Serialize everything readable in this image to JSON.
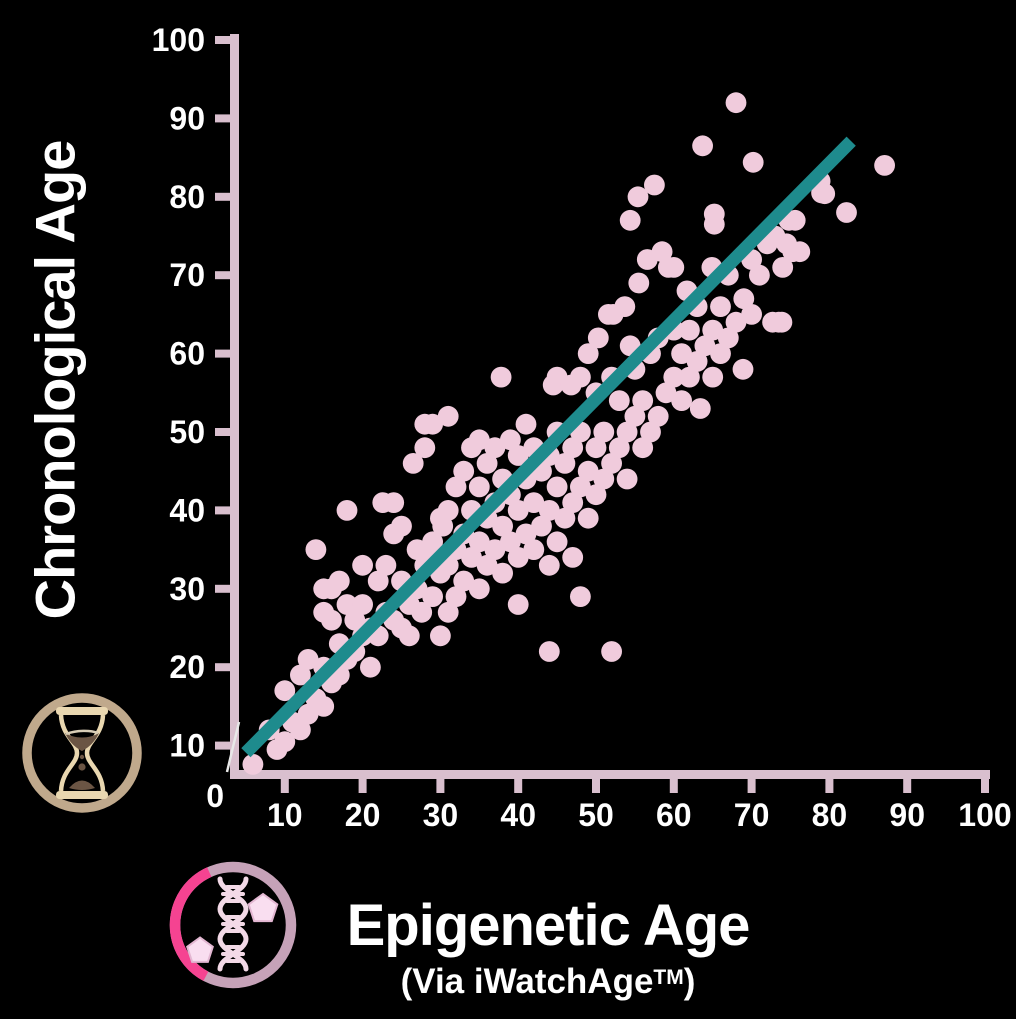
{
  "chart_data": {
    "type": "scatter",
    "title": "",
    "xlabel": "Epigenetic Age",
    "xlabel_subtitle_prefix": "(Via iWatchAge",
    "xlabel_subtitle_tm": "TM",
    "xlabel_subtitle_suffix": ")",
    "ylabel": "Chronological Age",
    "xlim": [
      0,
      100
    ],
    "ylim": [
      0,
      100
    ],
    "grid": false,
    "legend": "none",
    "origin_label": "0",
    "x_ticks": [
      10,
      20,
      30,
      40,
      50,
      60,
      70,
      80,
      90,
      100
    ],
    "y_ticks": [
      10,
      20,
      30,
      40,
      50,
      60,
      70,
      80,
      90,
      100
    ],
    "trendline": {
      "x1": 5,
      "y1": 9.1,
      "x2": 82.8,
      "y2": 87.1
    },
    "points": [
      [
        5.9,
        7.6
      ],
      [
        8,
        12
      ],
      [
        9,
        9.5
      ],
      [
        10,
        10.5
      ],
      [
        10,
        17
      ],
      [
        11,
        13
      ],
      [
        12,
        12
      ],
      [
        12,
        19
      ],
      [
        13,
        14
      ],
      [
        13,
        21
      ],
      [
        14,
        16
      ],
      [
        14,
        35
      ],
      [
        15,
        15
      ],
      [
        15,
        20
      ],
      [
        15,
        27
      ],
      [
        15,
        30
      ],
      [
        16,
        18
      ],
      [
        16,
        26
      ],
      [
        16,
        30
      ],
      [
        17,
        19
      ],
      [
        17,
        23
      ],
      [
        17,
        31
      ],
      [
        18,
        21
      ],
      [
        18,
        28
      ],
      [
        18,
        40
      ],
      [
        19,
        22
      ],
      [
        19,
        26
      ],
      [
        20,
        24
      ],
      [
        20,
        28
      ],
      [
        20,
        33
      ],
      [
        21,
        20
      ],
      [
        21,
        25
      ],
      [
        22,
        24
      ],
      [
        22,
        31
      ],
      [
        22.6,
        41
      ],
      [
        23,
        27
      ],
      [
        23,
        33
      ],
      [
        24,
        26
      ],
      [
        24,
        37
      ],
      [
        24,
        41
      ],
      [
        25,
        25
      ],
      [
        25,
        31
      ],
      [
        25,
        38
      ],
      [
        26,
        24
      ],
      [
        26,
        28
      ],
      [
        26.5,
        46
      ],
      [
        27,
        30
      ],
      [
        27,
        35
      ],
      [
        27.6,
        27
      ],
      [
        28,
        33
      ],
      [
        28,
        48
      ],
      [
        28,
        51
      ],
      [
        28.4,
        34
      ],
      [
        29,
        29
      ],
      [
        29,
        36
      ],
      [
        29,
        51
      ],
      [
        30,
        32
      ],
      [
        30,
        39
      ],
      [
        30,
        24
      ],
      [
        30.3,
        38
      ],
      [
        31,
        27
      ],
      [
        31,
        33
      ],
      [
        31,
        40
      ],
      [
        31,
        52
      ],
      [
        32,
        29
      ],
      [
        32,
        35
      ],
      [
        32,
        43
      ],
      [
        33,
        31
      ],
      [
        33,
        37
      ],
      [
        33,
        45
      ],
      [
        34,
        34
      ],
      [
        34,
        40
      ],
      [
        34,
        48
      ],
      [
        35,
        30
      ],
      [
        35,
        36
      ],
      [
        35,
        43
      ],
      [
        35,
        49
      ],
      [
        36,
        33
      ],
      [
        36,
        39
      ],
      [
        36,
        46
      ],
      [
        37,
        35
      ],
      [
        37,
        41
      ],
      [
        37,
        48
      ],
      [
        37.8,
        57
      ],
      [
        38,
        32
      ],
      [
        38,
        38
      ],
      [
        38,
        44
      ],
      [
        39,
        36
      ],
      [
        39,
        42
      ],
      [
        39,
        49
      ],
      [
        40,
        28
      ],
      [
        40,
        34
      ],
      [
        40,
        40
      ],
      [
        40,
        47
      ],
      [
        41,
        37
      ],
      [
        41,
        44
      ],
      [
        41,
        51
      ],
      [
        42,
        35
      ],
      [
        42,
        41
      ],
      [
        42,
        48
      ],
      [
        43,
        38
      ],
      [
        43,
        45
      ],
      [
        44,
        22
      ],
      [
        44,
        33
      ],
      [
        44,
        40
      ],
      [
        44,
        47
      ],
      [
        44.5,
        56
      ],
      [
        45,
        36
      ],
      [
        45,
        43
      ],
      [
        45,
        50
      ],
      [
        45,
        57
      ],
      [
        46,
        39
      ],
      [
        46,
        46
      ],
      [
        46.8,
        56
      ],
      [
        47,
        34
      ],
      [
        47,
        41
      ],
      [
        47,
        48
      ],
      [
        48,
        29
      ],
      [
        48,
        43
      ],
      [
        48,
        50
      ],
      [
        48,
        57
      ],
      [
        49,
        39
      ],
      [
        49,
        45
      ],
      [
        49,
        60
      ],
      [
        50,
        42
      ],
      [
        50,
        48
      ],
      [
        50,
        55
      ],
      [
        50.3,
        62
      ],
      [
        51,
        44
      ],
      [
        51,
        50
      ],
      [
        51.6,
        65
      ],
      [
        52,
        22
      ],
      [
        52,
        46
      ],
      [
        52,
        57
      ],
      [
        52.2,
        65
      ],
      [
        53,
        48
      ],
      [
        53,
        54
      ],
      [
        53.7,
        66
      ],
      [
        54,
        44
      ],
      [
        54,
        50
      ],
      [
        54.4,
        61
      ],
      [
        54.4,
        77
      ],
      [
        55,
        52
      ],
      [
        55,
        58
      ],
      [
        55.4,
        80
      ],
      [
        55.5,
        69
      ],
      [
        56,
        48
      ],
      [
        56,
        54
      ],
      [
        56.6,
        72
      ],
      [
        57,
        50
      ],
      [
        57,
        60
      ],
      [
        57.5,
        81.5
      ],
      [
        58,
        52
      ],
      [
        58,
        62
      ],
      [
        58.5,
        73
      ],
      [
        59,
        55
      ],
      [
        59.3,
        71
      ],
      [
        60,
        57
      ],
      [
        60,
        63
      ],
      [
        60,
        71
      ],
      [
        61,
        54
      ],
      [
        61,
        60
      ],
      [
        61.7,
        68
      ],
      [
        62,
        57
      ],
      [
        62,
        63
      ],
      [
        63,
        59
      ],
      [
        63,
        66
      ],
      [
        63.4,
        53
      ],
      [
        63.7,
        86.5
      ],
      [
        64,
        61
      ],
      [
        64.9,
        71
      ],
      [
        65,
        57
      ],
      [
        65,
        63
      ],
      [
        65.2,
        76.5
      ],
      [
        65.2,
        77.8
      ],
      [
        66,
        60
      ],
      [
        66,
        66
      ],
      [
        67,
        62
      ],
      [
        67,
        70
      ],
      [
        68,
        64
      ],
      [
        68,
        92
      ],
      [
        68.9,
        58
      ],
      [
        69,
        67
      ],
      [
        70,
        65
      ],
      [
        70,
        72
      ],
      [
        70.2,
        84.4
      ],
      [
        71,
        70
      ],
      [
        72,
        74
      ],
      [
        72.7,
        64
      ],
      [
        73,
        75
      ],
      [
        73.5,
        64
      ],
      [
        73.9,
        64
      ],
      [
        74,
        71
      ],
      [
        74.5,
        74
      ],
      [
        74.8,
        77
      ],
      [
        75.3,
        73
      ],
      [
        75.6,
        77
      ],
      [
        76.2,
        73
      ],
      [
        78.8,
        82
      ],
      [
        79,
        80.5
      ],
      [
        79.4,
        80.4
      ],
      [
        82.2,
        78
      ],
      [
        87.1,
        84
      ]
    ],
    "colors": {
      "background": "#000000",
      "text": "#ffffff",
      "axis": "#d9bfce",
      "points": "#f0cbdc",
      "trend": "#1e8b8d",
      "artifact": "#e8e8e8",
      "hourglass_ring": "#c0a98c",
      "hourglass_glass": "#e9d7b0",
      "hourglass_sand": "#6b5544",
      "hourglass_sand_top": "#d8cdb6",
      "dna_ring": "#c6a2b8",
      "dna_accent": "#f54391",
      "dna_strand": "#f3d9e7",
      "dna_tag": "#f9def0",
      "dna_tag_edge": "#e3b7d2"
    },
    "icons": {
      "y_axis_icon": "hourglass-in-circle",
      "x_axis_icon": "dna-helix-in-circle"
    }
  }
}
